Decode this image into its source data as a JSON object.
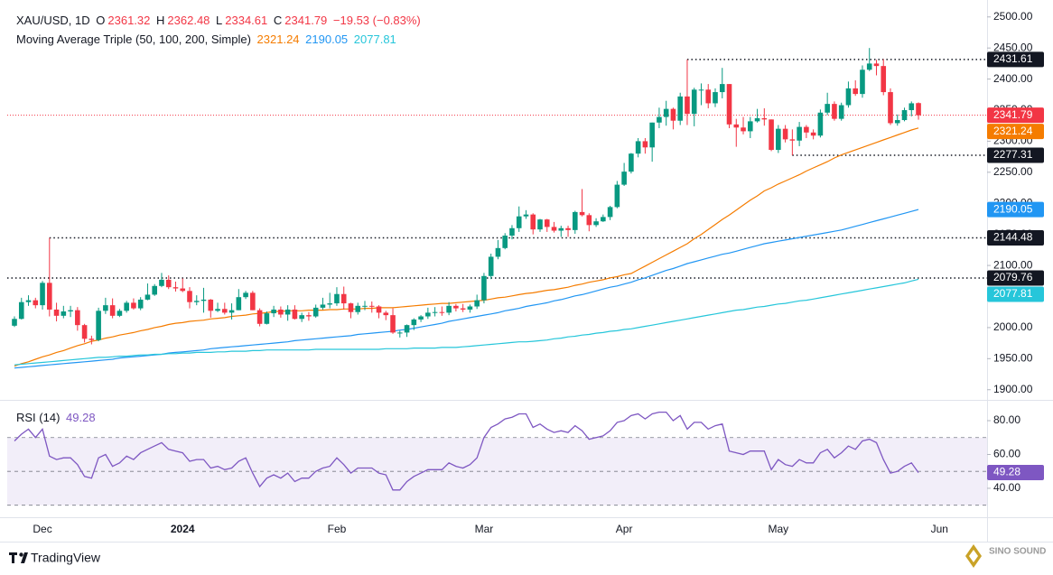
{
  "chart_data": {
    "type": "candlestick",
    "title": "XAU/USD, 1D",
    "ohlc_labels": [
      "O",
      "H",
      "L",
      "C"
    ],
    "change": "−19.53 (−0.83%)",
    "up_color": "#089981",
    "down_color": "#f23645",
    "categories": [
      null,
      null,
      null,
      null,
      "Dec",
      null,
      null,
      null,
      null,
      null,
      null,
      null,
      null,
      null,
      null,
      null,
      null,
      null,
      null,
      null,
      null,
      null,
      null,
      null,
      "2024",
      null,
      null,
      null,
      null,
      null,
      null,
      null,
      null,
      null,
      null,
      null,
      null,
      null,
      null,
      null,
      null,
      null,
      null,
      null,
      null,
      null,
      "Feb",
      null,
      null,
      null,
      null,
      null,
      null,
      null,
      null,
      null,
      null,
      null,
      null,
      null,
      null,
      null,
      null,
      null,
      null,
      null,
      null,
      "Mar",
      null,
      null,
      null,
      null,
      null,
      null,
      null,
      null,
      null,
      null,
      null,
      null,
      null,
      null,
      null,
      null,
      null,
      null,
      null,
      "Apr",
      null,
      null,
      null,
      null,
      null,
      null,
      null,
      null,
      null,
      null,
      null,
      null,
      null,
      null,
      null,
      null,
      null,
      null,
      null,
      null,
      null,
      "May",
      null,
      null,
      null,
      null,
      null,
      null,
      null,
      null,
      null,
      null,
      null,
      null,
      null,
      null,
      null,
      null,
      null,
      null,
      null,
      null,
      null,
      null,
      "Jun"
    ],
    "open": [
      2003,
      2014,
      2041,
      2044,
      2036,
      2072,
      2029,
      2019,
      2026,
      2028,
      2004,
      1982,
      1980,
      2027,
      2036,
      2019,
      2027,
      2040,
      2031,
      2045,
      2053,
      2067,
      2077,
      2065,
      2063,
      2059,
      2041,
      2043,
      2045,
      2027,
      2030,
      2024,
      2028,
      2049,
      2056,
      2028,
      2006,
      2023,
      2029,
      2021,
      2029,
      2014,
      2020,
      2018,
      2032,
      2037,
      2039,
      2054,
      2039,
      2025,
      2035,
      2035,
      2034,
      2024,
      2020,
      1992,
      1992,
      2004,
      2013,
      2018,
      2024,
      2025,
      2024,
      2035,
      2031,
      2029,
      2034,
      2044,
      2083,
      2114,
      2128,
      2148,
      2160,
      2179,
      2182,
      2158,
      2174,
      2162,
      2156,
      2160,
      2157,
      2186,
      2181,
      2165,
      2171,
      2178,
      2194,
      2230,
      2251,
      2280,
      2300,
      2290,
      2330,
      2339,
      2352,
      2333,
      2372,
      2344,
      2383,
      2383,
      2361,
      2379,
      2392,
      2327,
      2322,
      2316,
      2332,
      2337,
      2335,
      2286,
      2320,
      2303,
      2301,
      2323,
      2314,
      2309,
      2346,
      2360,
      2336,
      2358,
      2385,
      2376,
      2415,
      2425,
      2421,
      2379,
      2329,
      2334,
      2350,
      2361.32,
      null,
      null,
      null
    ],
    "high": [
      2018,
      2048,
      2052,
      2048,
      2075,
      2144.48,
      2040,
      2035,
      2035,
      2033,
      2006,
      1987,
      2032,
      2048,
      2047,
      2030,
      2043,
      2047,
      2049,
      2071,
      2070,
      2088,
      2084,
      2074,
      2079,
      2065,
      2052,
      2064,
      2046,
      2040,
      2040,
      2039,
      2062,
      2059,
      2059,
      2031,
      2026,
      2035,
      2034,
      2036,
      2036,
      2024,
      2025,
      2037,
      2048,
      2056,
      2065,
      2066,
      2040,
      2040,
      2043,
      2042,
      2036,
      2027,
      2031,
      1995,
      2005,
      2015,
      2020,
      2032,
      2033,
      2034,
      2041,
      2038,
      2038,
      2037,
      2053,
      2088,
      2119,
      2141,
      2152,
      2165,
      2195,
      2189,
      2184,
      2175,
      2175,
      2170,
      2164,
      2164,
      2188,
      2223,
      2184,
      2176,
      2182,
      2196,
      2236,
      2265,
      2281,
      2305,
      2305,
      2330,
      2354,
      2365,
      2354,
      2378,
      2431.61,
      2386,
      2393,
      2392,
      2385,
      2418,
      2392,
      2336,
      2339,
      2339,
      2352,
      2353,
      2335,
      2326,
      2326,
      2319,
      2331,
      2326,
      2319,
      2351,
      2378,
      2364,
      2362,
      2396,
      2398,
      2422,
      2450,
      2431,
      2432,
      2385,
      2343,
      2354,
      2364,
      2362.48,
      null,
      null,
      null
    ],
    "low": [
      2001,
      2013,
      2035,
      2031,
      2029,
      2018,
      2010,
      2015,
      2017,
      1995,
      1976,
      1973,
      1978,
      2022,
      2015,
      2017,
      2024,
      2029,
      2028,
      2044,
      2051,
      2065,
      2062,
      2058,
      2057,
      2031,
      2036,
      2024,
      2016,
      2025,
      2021,
      2013,
      2028,
      2046,
      2028,
      2002,
      2005,
      2017,
      2016,
      2011,
      2013,
      2009,
      2011,
      2016,
      2029,
      2031,
      2035,
      2029,
      2015,
      2021,
      2028,
      2024,
      2015,
      2012,
      1990,
      1984,
      1985,
      1996,
      2009,
      2014,
      2018,
      2019,
      2020,
      2026,
      2025,
      2024,
      2030,
      2039,
      2078,
      2110,
      2126,
      2142,
      2154,
      2175,
      2150,
      2154,
      2154,
      2153,
      2146,
      2146,
      2151,
      2179,
      2155,
      2162,
      2170,
      2173,
      2192,
      2228,
      2248,
      2274,
      2280,
      2267,
      2321,
      2325,
      2319,
      2326,
      2326,
      2324,
      2358,
      2353,
      2355,
      2369,
      2321,
      2291,
      2311,
      2305,
      2330,
      2325,
      2284,
      2281,
      2298,
      2277.31,
      2292,
      2305,
      2303,
      2306,
      2342,
      2333,
      2333,
      2354,
      2373,
      2370,
      2413,
      2406,
      2374,
      2326,
      2325,
      2332,
      2340,
      2334.61,
      null,
      null,
      null
    ],
    "close": [
      2014,
      2041,
      2044,
      2036,
      2072,
      2029,
      2019,
      2026,
      2028,
      2004,
      1982,
      1980,
      2027,
      2036,
      2019,
      2027,
      2040,
      2031,
      2045,
      2053,
      2067,
      2077,
      2065,
      2063,
      2059,
      2041,
      2043,
      2045,
      2027,
      2030,
      2024,
      2028,
      2049,
      2056,
      2028,
      2006,
      2023,
      2029,
      2021,
      2029,
      2014,
      2020,
      2018,
      2032,
      2037,
      2039,
      2054,
      2039,
      2025,
      2035,
      2035,
      2034,
      2024,
      2020,
      1992,
      1992,
      2004,
      2013,
      2018,
      2024,
      2025,
      2024,
      2035,
      2031,
      2029,
      2034,
      2044,
      2083,
      2114,
      2128,
      2148,
      2160,
      2179,
      2182,
      2158,
      2174,
      2162,
      2156,
      2160,
      2157,
      2186,
      2181,
      2165,
      2171,
      2178,
      2194,
      2230,
      2251,
      2280,
      2300,
      2290,
      2330,
      2339,
      2352,
      2333,
      2372,
      2344,
      2383,
      2383,
      2361,
      2379,
      2392,
      2327,
      2322,
      2316,
      2332,
      2337,
      2335,
      2286,
      2320,
      2303,
      2301,
      2323,
      2314,
      2309,
      2346,
      2360,
      2336,
      2358,
      2385,
      2376,
      2415,
      2425,
      2421,
      2379,
      2329,
      2334,
      2350,
      2361,
      2341.79,
      null,
      null,
      null
    ],
    "ylim": [
      1888,
      2520
    ],
    "yticks": [
      {
        "value": 1900,
        "label": "1900.00"
      },
      {
        "value": 1950,
        "label": "1950.00"
      },
      {
        "value": 2000,
        "label": "2000.00"
      },
      {
        "value": 2050,
        "label": "2050.00"
      },
      {
        "value": 2100,
        "label": "2100.00"
      },
      {
        "value": 2150,
        "label": "2150.00"
      },
      {
        "value": 2200,
        "label": "2200.00"
      },
      {
        "value": 2250,
        "label": "2250.00"
      },
      {
        "value": 2300,
        "label": "2300.00"
      },
      {
        "value": 2350,
        "label": "2350.00"
      },
      {
        "value": 2400,
        "label": "2400.00"
      },
      {
        "value": 2450,
        "label": "2450.00"
      },
      {
        "value": 2500,
        "label": "2500.00"
      }
    ],
    "levels": [
      2431.61,
      2277.31,
      2144.48,
      2079.76
    ],
    "level_color": "#131722",
    "ma": {
      "title": "Moving Average Triple (50, 100, 200, Simple)",
      "series": [
        {
          "color": "#f57c00",
          "values": [
            1938,
            1942,
            1945,
            1949,
            1953,
            1956,
            1960,
            1963,
            1967,
            1971,
            1974,
            1978,
            1980,
            1983,
            1985,
            1988,
            1990,
            1992,
            1995,
            1997,
            2000,
            2002,
            2005,
            2007,
            2008,
            2010,
            2011,
            2012,
            2014,
            2015,
            2016,
            2018,
            2019,
            2020,
            2022,
            2023,
            2024,
            2026,
            2026,
            2027,
            2027,
            2027,
            2028,
            2028,
            2028,
            2029,
            2029,
            2030,
            2030,
            2030,
            2031,
            2031,
            2032,
            2032,
            2032,
            2033,
            2034,
            2035,
            2036,
            2037,
            2038,
            2039,
            2039,
            2040,
            2041,
            2042,
            2043,
            2044,
            2046,
            2048,
            2049,
            2051,
            2053,
            2055,
            2056,
            2058,
            2060,
            2061,
            2063,
            2065,
            2068,
            2070,
            2073,
            2075,
            2077,
            2080,
            2082,
            2085,
            2087,
            2093,
            2099,
            2105,
            2111,
            2117,
            2123,
            2129,
            2135,
            2143,
            2150,
            2158,
            2166,
            2174,
            2181,
            2189,
            2197,
            2205,
            2212,
            2220,
            2225,
            2231,
            2236,
            2241,
            2246,
            2252,
            2257,
            2262,
            2267,
            2273,
            2278,
            2282,
            2286,
            2290,
            2294,
            2298,
            2302,
            2306,
            2310,
            2314,
            2318,
            2321.24,
            null,
            null,
            null
          ]
        },
        {
          "color": "#2196f3",
          "values": [
            1935,
            1936,
            1937,
            1938,
            1939,
            1940,
            1941,
            1942,
            1943,
            1944,
            1945,
            1946,
            1947,
            1948,
            1949,
            1951,
            1952,
            1953,
            1954,
            1955,
            1956,
            1957,
            1959,
            1960,
            1961,
            1962,
            1963,
            1964,
            1966,
            1967,
            1968,
            1969,
            1970,
            1971,
            1972,
            1973,
            1974,
            1975,
            1976,
            1977,
            1979,
            1980,
            1981,
            1982,
            1983,
            1984,
            1985,
            1986,
            1987,
            1989,
            1990,
            1991,
            1992,
            1993,
            1994,
            1996,
            1997,
            1999,
            2001,
            2003,
            2005,
            2007,
            2010,
            2012,
            2014,
            2016,
            2018,
            2020,
            2022,
            2024,
            2027,
            2029,
            2031,
            2034,
            2036,
            2038,
            2040,
            2043,
            2045,
            2048,
            2051,
            2053,
            2056,
            2059,
            2062,
            2065,
            2067,
            2070,
            2073,
            2077,
            2080,
            2084,
            2088,
            2092,
            2095,
            2099,
            2103,
            2106,
            2109,
            2112,
            2115,
            2118,
            2120,
            2123,
            2126,
            2129,
            2132,
            2135,
            2137,
            2139,
            2141,
            2143,
            2145,
            2147,
            2149,
            2151,
            2153,
            2155,
            2157,
            2160,
            2163,
            2166,
            2169,
            2172,
            2175,
            2178,
            2181,
            2184,
            2187,
            2190.05,
            null,
            null,
            null
          ]
        },
        {
          "color": "#26c6da",
          "values": [
            1940,
            1941,
            1942,
            1943,
            1944,
            1945,
            1946,
            1947,
            1948,
            1949,
            1950,
            1951,
            1952,
            1952,
            1953,
            1954,
            1954,
            1955,
            1956,
            1956,
            1957,
            1957,
            1958,
            1958,
            1959,
            1959,
            1960,
            1960,
            1960,
            1961,
            1961,
            1962,
            1962,
            1962,
            1963,
            1963,
            1964,
            1964,
            1964,
            1964,
            1964,
            1964,
            1964,
            1965,
            1965,
            1965,
            1965,
            1965,
            1965,
            1965,
            1965,
            1965,
            1965,
            1966,
            1966,
            1966,
            1966,
            1967,
            1967,
            1967,
            1967,
            1968,
            1968,
            1968,
            1969,
            1970,
            1971,
            1972,
            1973,
            1974,
            1975,
            1976,
            1977,
            1977,
            1978,
            1979,
            1980,
            1982,
            1983,
            1985,
            1986,
            1988,
            1989,
            1991,
            1992,
            1994,
            1995,
            1997,
            1998,
            2000,
            2002,
            2004,
            2006,
            2008,
            2010,
            2012,
            2014,
            2016,
            2018,
            2020,
            2022,
            2024,
            2026,
            2028,
            2029,
            2031,
            2033,
            2034,
            2036,
            2038,
            2039,
            2041,
            2043,
            2044,
            2046,
            2048,
            2050,
            2052,
            2054,
            2056,
            2058,
            2060,
            2062,
            2064,
            2066,
            2068,
            2070,
            2072,
            2075,
            2077.81,
            null,
            null,
            null
          ]
        }
      ]
    },
    "rsi": {
      "title": "RSI (14)",
      "color": "#7e57c2",
      "ylim": [
        24.5,
        89.6
      ],
      "yticks": [
        {
          "value": 40,
          "label": "40.00"
        },
        {
          "value": 60,
          "label": "60.00"
        },
        {
          "value": 80,
          "label": "80.00"
        }
      ],
      "bands": [
        30,
        50,
        70
      ],
      "values": [
        68,
        72,
        75,
        70,
        75,
        59,
        57,
        58,
        58,
        54,
        47,
        46,
        58,
        60,
        53,
        55,
        59,
        57,
        61,
        63,
        65,
        67,
        63,
        62,
        61,
        56,
        57,
        57,
        52,
        53,
        51,
        52,
        56,
        58,
        49,
        41,
        46,
        48,
        46,
        49,
        44,
        46,
        46,
        50,
        52,
        53,
        58,
        54,
        49,
        52,
        52,
        52,
        49,
        48,
        39,
        39,
        44,
        47,
        49,
        51,
        51,
        51,
        55,
        53,
        52,
        54,
        58,
        70,
        76,
        78,
        81,
        82,
        84,
        84,
        76,
        78,
        75,
        73,
        74,
        73,
        77,
        74,
        69,
        70,
        71,
        74,
        79,
        80,
        83,
        84,
        81,
        84,
        85,
        85,
        80,
        83,
        75,
        79,
        79,
        75,
        77,
        78,
        62,
        61,
        60,
        62,
        62,
        62,
        51,
        57,
        54,
        53,
        57,
        55,
        55,
        61,
        63,
        58,
        61,
        65,
        63,
        68,
        69,
        67,
        57,
        49,
        50,
        53,
        55,
        49.28,
        null,
        null,
        null
      ]
    }
  },
  "footer": {
    "brand": "TradingView",
    "watermark": "SINO SOUND"
  }
}
